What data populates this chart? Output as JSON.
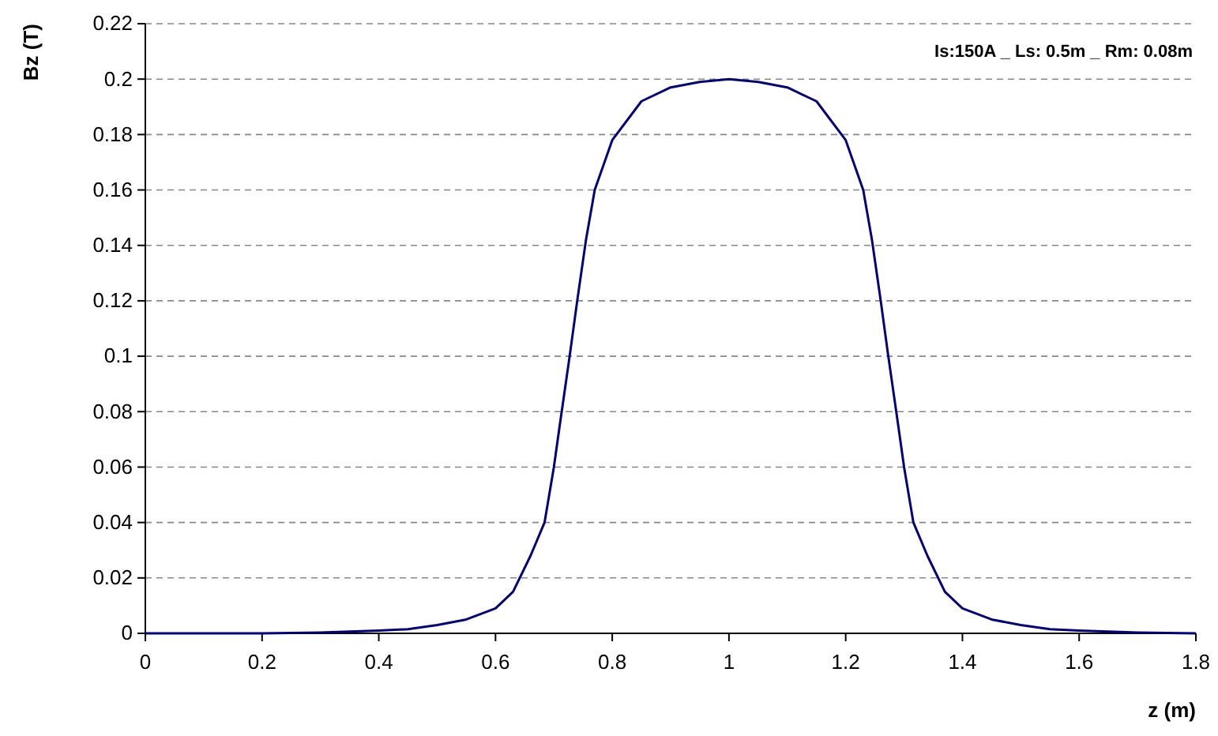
{
  "chart_data": {
    "type": "line",
    "xlabel": "z (m)",
    "ylabel": "Bz (T)",
    "annotations": [
      "Is:150A _ Ls: 0.5m _ Rm: 0.08m"
    ],
    "xlim": [
      0,
      1.8
    ],
    "xticks": [
      0,
      0.2,
      0.4,
      0.6,
      0.8,
      1,
      1.2,
      1.4,
      1.6,
      1.8
    ],
    "ylim": [
      0,
      0.22
    ],
    "yticks": [
      0,
      0.02,
      0.04,
      0.06,
      0.08,
      0.1,
      0.12,
      0.14,
      0.16,
      0.18,
      0.2,
      0.22
    ],
    "grid": "y",
    "marker": "none",
    "line_style": "solid",
    "series": [
      {
        "color": "#000080",
        "x": [
          0,
          0.2,
          0.3,
          0.4,
          0.45,
          0.5,
          0.55,
          0.6,
          0.63,
          0.66,
          0.684,
          0.7,
          0.71,
          0.727,
          0.74,
          0.755,
          0.77,
          0.8,
          0.85,
          0.9,
          0.95,
          1.0,
          1.05,
          1.1,
          1.15,
          1.2,
          1.23,
          1.245,
          1.26,
          1.273,
          1.29,
          1.3,
          1.316,
          1.34,
          1.37,
          1.4,
          1.45,
          1.5,
          1.55,
          1.6,
          1.7,
          1.8
        ],
        "values": [
          0,
          0,
          0.0003,
          0.001,
          0.0015,
          0.003,
          0.005,
          0.009,
          0.015,
          0.028,
          0.04,
          0.06,
          0.075,
          0.1,
          0.12,
          0.142,
          0.16,
          0.178,
          0.192,
          0.197,
          0.199,
          0.2,
          0.199,
          0.197,
          0.192,
          0.178,
          0.16,
          0.142,
          0.12,
          0.1,
          0.075,
          0.06,
          0.04,
          0.028,
          0.015,
          0.009,
          0.005,
          0.003,
          0.0015,
          0.001,
          0.0003,
          0
        ]
      }
    ]
  }
}
